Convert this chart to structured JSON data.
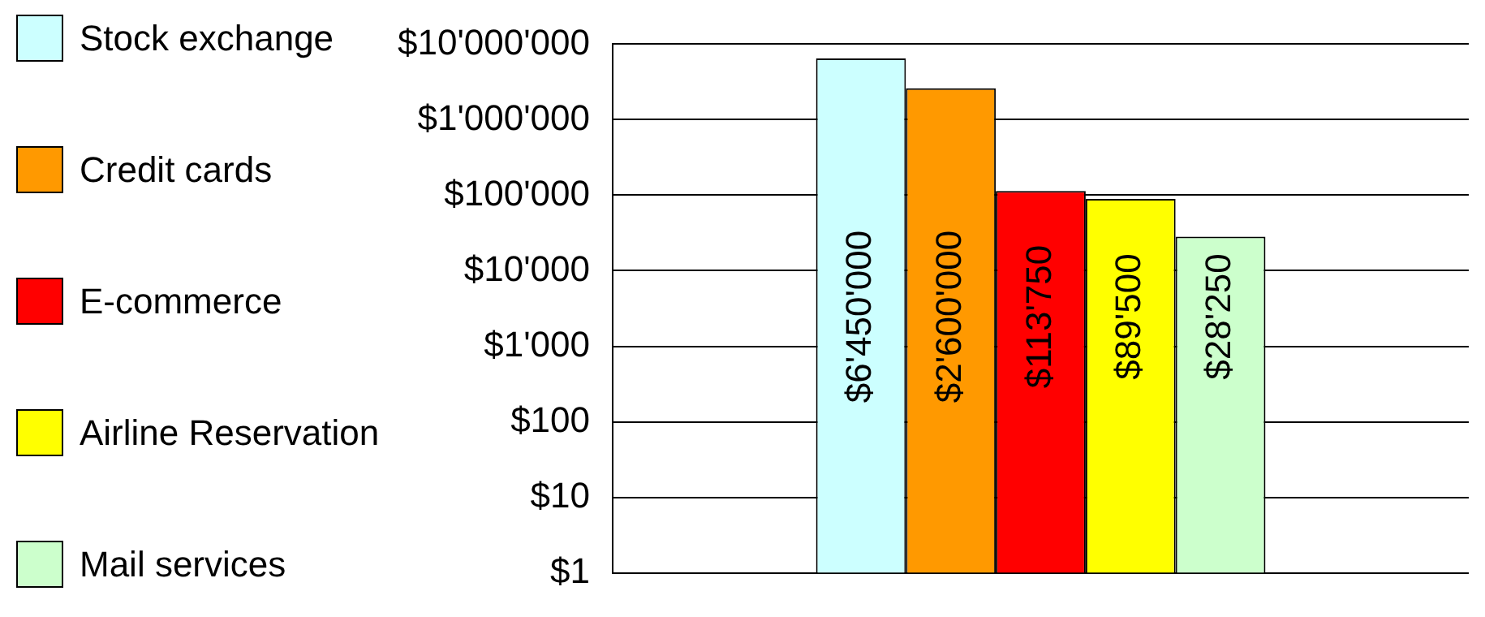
{
  "chart_data": {
    "type": "bar",
    "categories": [
      null
    ],
    "series": [
      {
        "name": "Stock exchange",
        "color": "#ccffff",
        "values": [
          6450000
        ],
        "value_labels": [
          "$6'450'000"
        ]
      },
      {
        "name": "Credit cards",
        "color": "#ff9900",
        "values": [
          2600000
        ],
        "value_labels": [
          "$2'600'000"
        ]
      },
      {
        "name": "E-commerce",
        "color": "#ff0000",
        "values": [
          113750
        ],
        "value_labels": [
          "$113'750"
        ]
      },
      {
        "name": "Airline Reservation",
        "color": "#ffff00",
        "values": [
          89500
        ],
        "value_labels": [
          "$89'500"
        ]
      },
      {
        "name": "Mail services",
        "color": "#ccffcc",
        "values": [
          28250
        ],
        "value_labels": [
          "$28'250"
        ]
      }
    ],
    "log": "y",
    "ylim": [
      1,
      10000000
    ],
    "yticks": [
      {
        "value": 1,
        "label": "$1"
      },
      {
        "value": 10,
        "label": "$10"
      },
      {
        "value": 100,
        "label": "$100"
      },
      {
        "value": 1000,
        "label": "$1'000"
      },
      {
        "value": 10000,
        "label": "$10'000"
      },
      {
        "value": 100000,
        "label": "$100'000"
      },
      {
        "value": 1000000,
        "label": "$1'000'000"
      },
      {
        "value": 10000000,
        "label": "$10'000'000"
      }
    ],
    "grid": "y",
    "legend": "left"
  }
}
